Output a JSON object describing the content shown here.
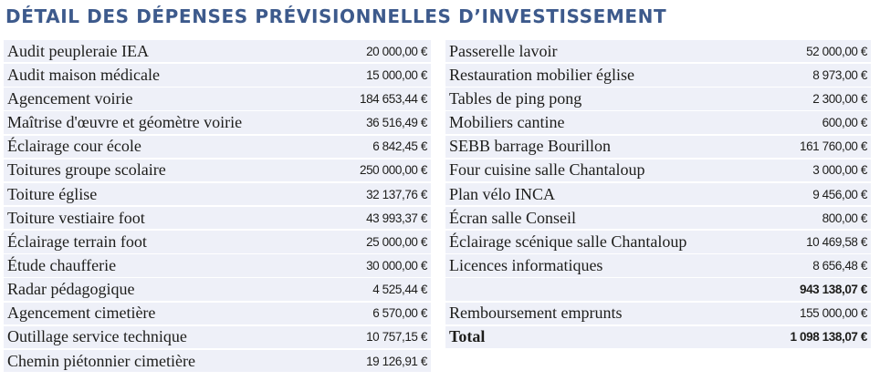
{
  "title": "DÉTAIL DES DÉPENSES PRÉVISIONNELLES D’INVESTISSEMENT",
  "left_rows": [
    {
      "label": "Audit peupleraie IEA",
      "amount": "20 000,00 €"
    },
    {
      "label": "Audit maison médicale",
      "amount": "15 000,00 €"
    },
    {
      "label": "Agencement voirie",
      "amount": "184 653,44 €"
    },
    {
      "label": "Maîtrise d'œuvre et géomètre voirie",
      "amount": "36 516,49 €"
    },
    {
      "label": "Éclairage cour école",
      "amount": "6 842,45 €"
    },
    {
      "label": "Toitures groupe scolaire",
      "amount": "250 000,00 €"
    },
    {
      "label": "Toiture église",
      "amount": "32 137,76 €"
    },
    {
      "label": "Toiture vestiaire foot",
      "amount": "43 993,37 €"
    },
    {
      "label": "Éclairage terrain foot",
      "amount": "25 000,00 €"
    },
    {
      "label": "Étude chaufferie",
      "amount": "30 000,00 €"
    },
    {
      "label": "Radar pédagogique",
      "amount": "4 525,44 €"
    },
    {
      "label": "Agencement cimetière",
      "amount": "6 570,00 €"
    },
    {
      "label": "Outillage service technique",
      "amount": "10 757,15 €"
    },
    {
      "label": "Chemin piétonnier cimetière",
      "amount": "19 126,91 €"
    }
  ],
  "right_rows": [
    {
      "label": "Passerelle lavoir",
      "amount": "52 000,00 €"
    },
    {
      "label": "Restauration mobilier église",
      "amount": "8 973,00 €"
    },
    {
      "label": "Tables de ping pong",
      "amount": "2 300,00 €"
    },
    {
      "label": "Mobiliers cantine",
      "amount": "600,00 €"
    },
    {
      "label": "SEBB barrage Bourillon",
      "amount": "161 760,00 €"
    },
    {
      "label": "Four cuisine salle Chantaloup",
      "amount": "3 000,00 €"
    },
    {
      "label": "Plan vélo INCA",
      "amount": "9 456,00 €"
    },
    {
      "label": "Écran salle Conseil",
      "amount": "800,00 €"
    },
    {
      "label": "Éclairage scénique salle Chantaloup",
      "amount": "10 469,58 €"
    },
    {
      "label": "Licences informatiques",
      "amount": "8 656,48 €"
    }
  ],
  "subtotal": {
    "label": "",
    "amount": "943 138,07 €"
  },
  "loan_repayment": {
    "label": "Remboursement emprunts",
    "amount": "155 000,00 €"
  },
  "total": {
    "label": "Total",
    "amount": "1 098 138,07 €"
  }
}
